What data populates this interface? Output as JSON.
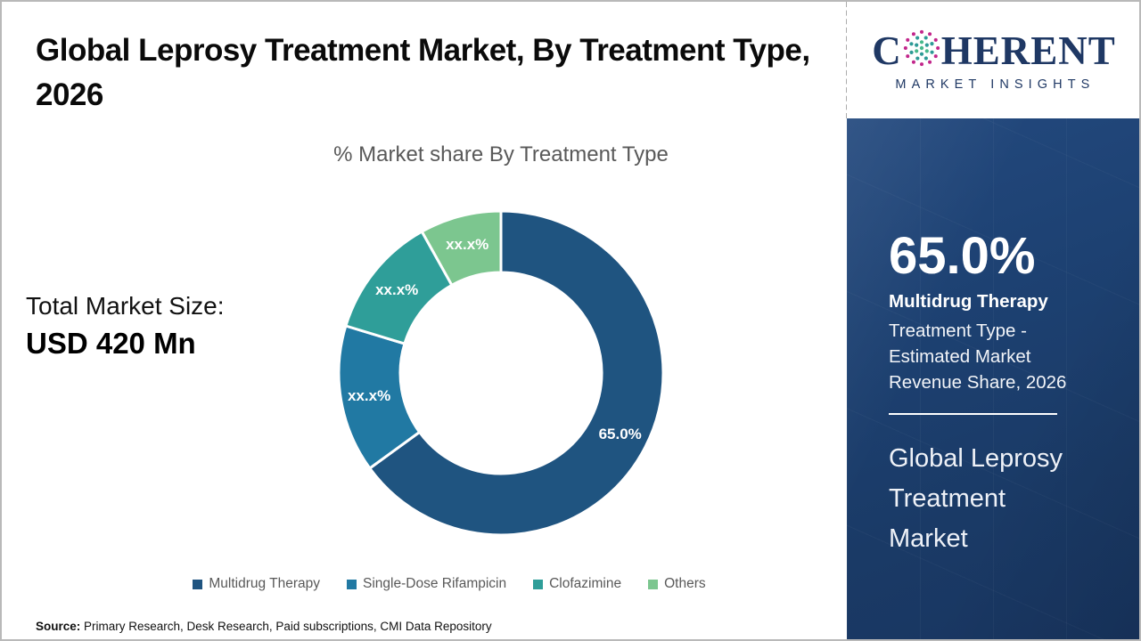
{
  "header": {
    "title": "Global Leprosy Treatment Market, By Treatment Type, 2026"
  },
  "logo": {
    "word_start": "C",
    "word_end": "HERENT",
    "subtitle": "MARKET INSIGHTS",
    "brand_color": "#1f3864",
    "globe_colors": {
      "outer": "#c2268b",
      "mid": "#2e9a96",
      "inner": "#46b98c"
    }
  },
  "left_panel": {
    "total_label": "Total Market Size:",
    "total_value": "USD 420 Mn"
  },
  "chart_data": {
    "type": "pie",
    "subtype": "donut",
    "title": "% Market share By Treatment Type",
    "categories": [
      "Multidrug Therapy",
      "Single-Dose Rifampicin",
      "Clofazimine",
      "Others"
    ],
    "values": [
      65.0,
      14.7,
      12.2,
      8.1
    ],
    "displayed_labels": [
      "65.0%",
      "xx.x%",
      "xx.x%",
      "xx.x%"
    ],
    "colors": [
      "#1f5480",
      "#2179a3",
      "#2f9e99",
      "#7cc68f"
    ],
    "start_angle_deg": 0,
    "clockwise": true,
    "outer_radius": 182,
    "inner_radius": 113,
    "label_radius": 150,
    "slice_gap_stroke": "#ffffff",
    "legend_position": "bottom"
  },
  "sidebar": {
    "highlight_value": "65.0%",
    "highlight_title": "Multidrug Therapy",
    "highlight_desc_lines": [
      "Treatment Type -",
      "Estimated Market",
      "Revenue Share, 2026"
    ],
    "market_name_lines": [
      "Global Leprosy",
      "Treatment",
      "Market"
    ],
    "background_color": "#1d4172"
  },
  "footer": {
    "source_label": "Source:",
    "source_text": " Primary Research, Desk Research, Paid subscriptions, CMI Data Repository"
  }
}
